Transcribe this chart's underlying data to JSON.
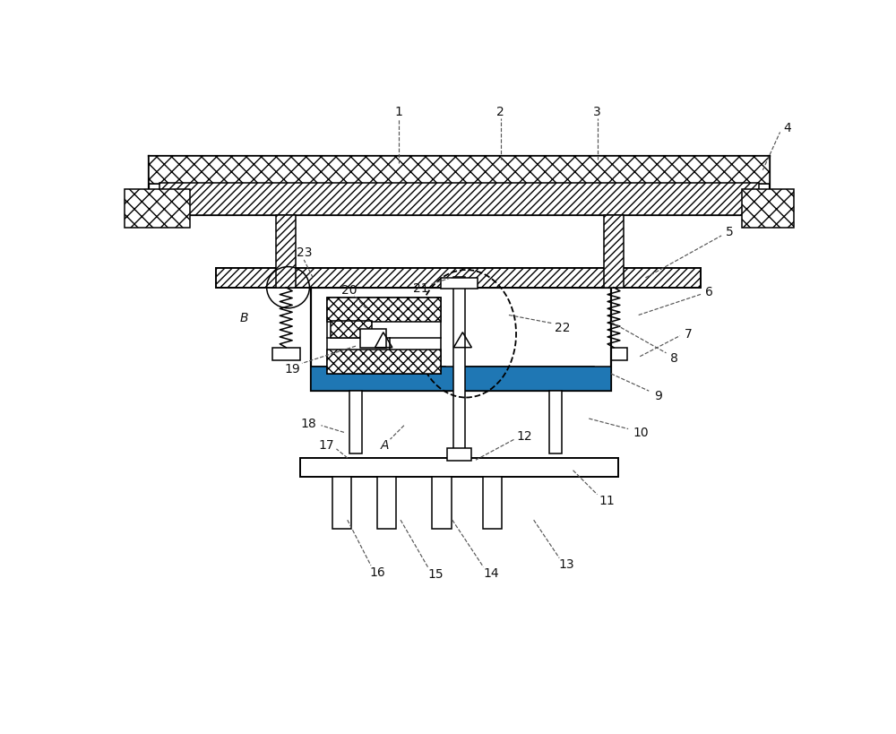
{
  "bg_color": "#ffffff",
  "lc": "#1a1a1a",
  "fig_w": 10.0,
  "fig_h": 8.2,
  "dpi": 100,
  "label_fs": 10,
  "label_color": "#111111",
  "leader_color": "#555555",
  "leader_lw": 0.85
}
